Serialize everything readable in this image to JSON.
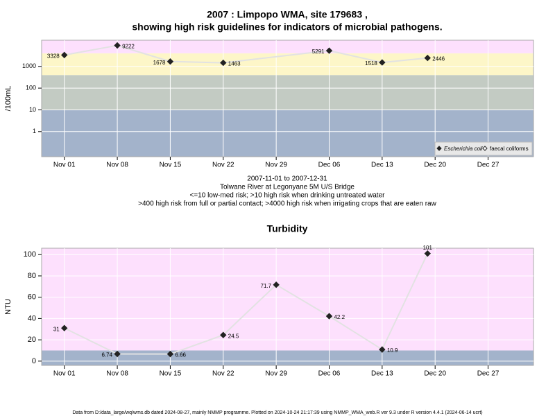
{
  "chart_data": [
    {
      "type": "line",
      "title": [
        "2007 : Limpopo WMA, site 179683 ,",
        "showing high risk guidelines for indicators of microbial pathogens."
      ],
      "subtitle": [
        "2007-11-01 to 2007-12-31",
        "Tolwane River at Legonyane 5M U/S Bridge",
        "<=10 low-med risk; >10 high risk when drinking untreated water",
        ">400 high risk from full or partial contact; >4000 high risk when irrigating crops that are eaten raw"
      ],
      "ylabel": "/100mL",
      "log_y": true,
      "grid": true,
      "legend": "bottom-right",
      "x": [
        "2007-11-01",
        "2007-11-08",
        "2007-11-15",
        "2007-11-22",
        "2007-12-06",
        "2007-12-13",
        "2007-12-19"
      ],
      "series": [
        {
          "name": "Escherichia coli",
          "color": "#222222",
          "line_color": "#e2e2e2",
          "values": [
            3328,
            9222,
            1678,
            1463,
            5291,
            1518,
            2446
          ]
        },
        {
          "name": "faecal coliforms",
          "color": "#ffffff",
          "line_color": "#e2e2e2",
          "values": [
            null,
            null,
            null,
            null,
            null,
            null,
            null
          ]
        }
      ],
      "bands": [
        {
          "from": 0.07,
          "to": 10,
          "color": "#a3b3cb"
        },
        {
          "from": 10,
          "to": 400,
          "color": "#c3cbc3"
        },
        {
          "from": 400,
          "to": 4000,
          "color": "#fdf6c8"
        },
        {
          "from": 4000,
          "to": 16000,
          "color": "#fde0fd"
        }
      ],
      "xlim": [
        "2007-10-29",
        "2008-01-02"
      ],
      "xticks": [
        {
          "value": "2007-11-01",
          "label": "Nov 01"
        },
        {
          "value": "2007-11-08",
          "label": "Nov 08"
        },
        {
          "value": "2007-11-15",
          "label": "Nov 15"
        },
        {
          "value": "2007-11-22",
          "label": "Nov 22"
        },
        {
          "value": "2007-11-29",
          "label": "Nov 29"
        },
        {
          "value": "2007-12-06",
          "label": "Dec 06"
        },
        {
          "value": "2007-12-13",
          "label": "Dec 13"
        },
        {
          "value": "2007-12-20",
          "label": "Dec 20"
        },
        {
          "value": "2007-12-27",
          "label": "Dec 27"
        }
      ],
      "ylim": [
        0.07,
        16000
      ],
      "yticks": [
        1,
        10,
        100,
        1000
      ]
    },
    {
      "type": "line",
      "title": [
        "Turbidity"
      ],
      "ylabel": "NTU",
      "log_y": false,
      "grid": true,
      "x": [
        "2007-11-01",
        "2007-11-08",
        "2007-11-15",
        "2007-11-22",
        "2007-11-29",
        "2007-12-06",
        "2007-12-13",
        "2007-12-19"
      ],
      "series": [
        {
          "color": "#222222",
          "line_color": "#e2e2e2",
          "values": [
            31,
            6.74,
            6.66,
            24.5,
            71.7,
            42.2,
            10.9,
            101
          ]
        }
      ],
      "bands": [
        {
          "from": -4,
          "to": 10,
          "color": "#a3b3cb"
        },
        {
          "from": 10,
          "to": 106,
          "color": "#fde0fd"
        }
      ],
      "xlim": [
        "2007-10-29",
        "2008-01-02"
      ],
      "xticks": [
        {
          "value": "2007-11-01",
          "label": "Nov 01"
        },
        {
          "value": "2007-11-08",
          "label": "Nov 08"
        },
        {
          "value": "2007-11-15",
          "label": "Nov 15"
        },
        {
          "value": "2007-11-22",
          "label": "Nov 22"
        },
        {
          "value": "2007-11-29",
          "label": "Nov 29"
        },
        {
          "value": "2007-12-06",
          "label": "Dec 06"
        },
        {
          "value": "2007-12-13",
          "label": "Dec 13"
        },
        {
          "value": "2007-12-20",
          "label": "Dec 20"
        },
        {
          "value": "2007-12-27",
          "label": "Dec 27"
        }
      ],
      "ylim": [
        -4,
        106
      ],
      "yticks": [
        0,
        20,
        40,
        60,
        80,
        100
      ]
    }
  ],
  "footer": "Data from D:/data_large/wq/wms.db dated 2024-08-27, mainly NMMP programme. Plotted on 2024-10-24 21:17:39 using NMMP_WMA_web.R ver 9.3 under R version 4.4.1 (2024-06-14 ucrt)"
}
